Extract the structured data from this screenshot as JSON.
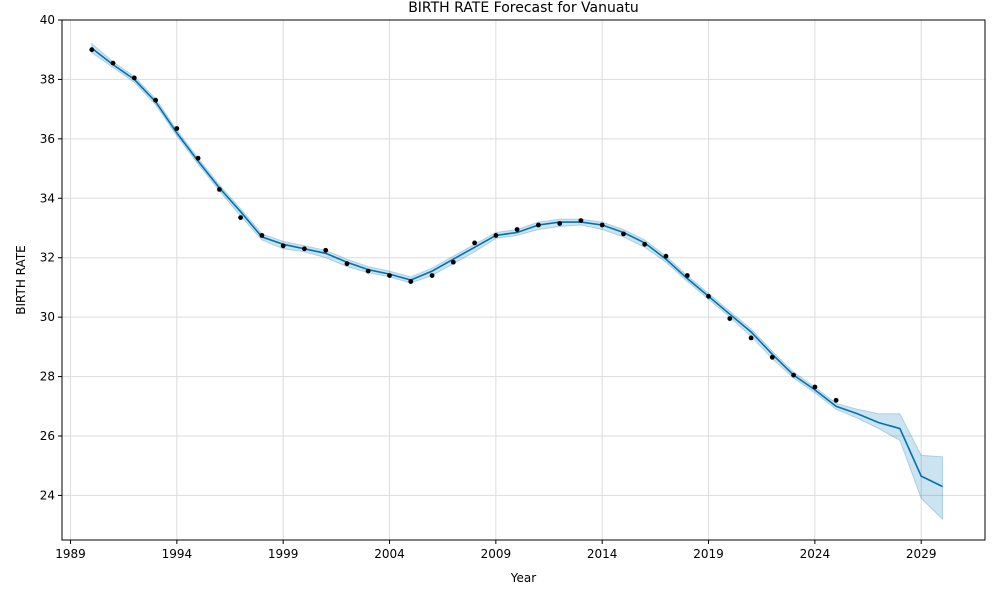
{
  "chart_data": {
    "type": "line",
    "title": "BIRTH RATE Forecast for Vanuatu",
    "xlabel": "Year",
    "ylabel": "BIRTH RATE",
    "xlim": [
      1988.6,
      2032.0
    ],
    "ylim": [
      22.5,
      40.0
    ],
    "x_ticks": [
      1989,
      1994,
      1999,
      2004,
      2009,
      2014,
      2019,
      2024,
      2029
    ],
    "y_ticks": [
      24,
      26,
      28,
      30,
      32,
      34,
      36,
      38,
      40
    ],
    "grid": true,
    "colors": {
      "line": "#0072B2",
      "band": "#0072B2",
      "points": "#000000"
    },
    "observed": {
      "x": [
        1990,
        1991,
        1992,
        1993,
        1994,
        1995,
        1996,
        1997,
        1998,
        1999,
        2000,
        2001,
        2002,
        2003,
        2004,
        2005,
        2006,
        2007,
        2008,
        2009,
        2010,
        2011,
        2012,
        2013,
        2014,
        2015,
        2016,
        2017,
        2018,
        2019,
        2020,
        2021,
        2022,
        2023,
        2024,
        2025
      ],
      "y": [
        39.0,
        38.55,
        38.05,
        37.3,
        36.35,
        35.35,
        34.3,
        33.35,
        32.75,
        32.4,
        32.3,
        32.25,
        31.8,
        31.55,
        31.4,
        31.2,
        31.4,
        31.85,
        32.5,
        32.75,
        32.95,
        33.1,
        33.15,
        33.25,
        33.1,
        32.8,
        32.45,
        32.05,
        31.4,
        30.7,
        29.95,
        29.3,
        28.65,
        28.05,
        27.65,
        27.2
      ]
    },
    "forecast": {
      "x": [
        1990,
        1991,
        1992,
        1993,
        1994,
        1995,
        1996,
        1997,
        1998,
        1999,
        2000,
        2001,
        2002,
        2003,
        2004,
        2005,
        2006,
        2007,
        2008,
        2009,
        2010,
        2011,
        2012,
        2013,
        2014,
        2015,
        2016,
        2017,
        2018,
        2019,
        2020,
        2021,
        2022,
        2023,
        2024,
        2025,
        2026,
        2027,
        2028,
        2029,
        2030
      ],
      "y": [
        39.05,
        38.5,
        38.0,
        37.25,
        36.2,
        35.25,
        34.35,
        33.55,
        32.7,
        32.45,
        32.3,
        32.15,
        31.85,
        31.6,
        31.45,
        31.25,
        31.55,
        31.95,
        32.35,
        32.75,
        32.85,
        33.1,
        33.2,
        33.2,
        33.1,
        32.85,
        32.5,
        31.95,
        31.3,
        30.7,
        30.1,
        29.5,
        28.75,
        28.05,
        27.55,
        27.0,
        26.75,
        26.45,
        26.25,
        24.65,
        24.3
      ],
      "lower": [
        38.9,
        38.4,
        37.9,
        37.15,
        36.1,
        35.15,
        34.25,
        33.4,
        32.6,
        32.3,
        32.2,
        32.0,
        31.7,
        31.5,
        31.35,
        31.15,
        31.4,
        31.8,
        32.2,
        32.65,
        32.75,
        32.95,
        33.05,
        33.1,
        32.95,
        32.7,
        32.35,
        31.85,
        31.2,
        30.6,
        30.0,
        29.35,
        28.6,
        27.95,
        27.45,
        26.9,
        26.6,
        26.25,
        25.85,
        23.9,
        23.2
      ],
      "upper": [
        39.2,
        38.6,
        38.1,
        37.35,
        36.3,
        35.35,
        34.45,
        33.65,
        32.8,
        32.55,
        32.4,
        32.25,
        31.95,
        31.7,
        31.55,
        31.35,
        31.65,
        32.05,
        32.45,
        32.85,
        32.95,
        33.2,
        33.3,
        33.3,
        33.2,
        32.95,
        32.6,
        32.05,
        31.4,
        30.8,
        30.2,
        29.6,
        28.85,
        28.15,
        27.65,
        27.1,
        26.9,
        26.75,
        26.75,
        25.35,
        25.3
      ]
    }
  }
}
